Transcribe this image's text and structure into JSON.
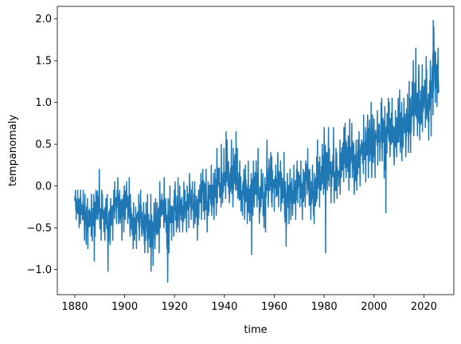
{
  "chart_data": {
    "type": "line",
    "xlabel": "time",
    "ylabel": "tempanomaly",
    "xlim": [
      1873,
      2032
    ],
    "ylim": [
      -1.3,
      2.15
    ],
    "x_ticks": [
      1880,
      1900,
      1920,
      1940,
      1960,
      1980,
      2000,
      2020
    ],
    "x_tick_labels": [
      "1880",
      "1900",
      "1920",
      "1940",
      "1960",
      "1980",
      "2000",
      "2020"
    ],
    "y_ticks": [
      -1.0,
      -0.5,
      0.0,
      0.5,
      1.0,
      1.5,
      2.0
    ],
    "y_tick_labels": [
      "−1.0",
      "−0.5",
      "0.0",
      "0.5",
      "1.0",
      "1.5",
      "2.0"
    ],
    "grid": false,
    "line_color": "#1f77b4",
    "series": [
      {
        "x": [
          1880,
          1881,
          1882,
          1883,
          1884,
          1885,
          1886,
          1887,
          1888,
          1889,
          1890,
          1891,
          1892,
          1893,
          1894,
          1895,
          1896,
          1897,
          1898,
          1899,
          1900,
          1901,
          1902,
          1903,
          1904,
          1905,
          1906,
          1907,
          1908,
          1909,
          1910,
          1911,
          1912,
          1913,
          1914,
          1915,
          1916,
          1917,
          1918,
          1919,
          1920,
          1921,
          1922,
          1923,
          1924,
          1925,
          1926,
          1927,
          1928,
          1929,
          1930,
          1931,
          1932,
          1933,
          1934,
          1935,
          1936,
          1937,
          1938,
          1939,
          1940,
          1941,
          1942,
          1943,
          1944,
          1945,
          1946,
          1947,
          1948,
          1949,
          1950,
          1951,
          1952,
          1953,
          1954,
          1955,
          1956,
          1957,
          1958,
          1959,
          1960,
          1961,
          1962,
          1963,
          1964,
          1965,
          1966,
          1967,
          1968,
          1969,
          1970,
          1971,
          1972,
          1973,
          1974,
          1975,
          1976,
          1977,
          1978,
          1979,
          1980,
          1981,
          1982,
          1983,
          1984,
          1985,
          1986,
          1987,
          1988,
          1989,
          1990,
          1991,
          1992,
          1993,
          1994,
          1995,
          1996,
          1997,
          1998,
          1999,
          2000,
          2001,
          2002,
          2003,
          2004,
          2005,
          2006,
          2007,
          2008,
          2009,
          2010,
          2011,
          2012,
          2013,
          2014,
          2015,
          2016,
          2017,
          2018,
          2019,
          2020,
          2021,
          2022,
          2023,
          2024,
          2025
        ],
        "y_mean": [
          -0.2,
          -0.25,
          -0.22,
          -0.3,
          -0.35,
          -0.4,
          -0.35,
          -0.38,
          -0.3,
          -0.18,
          -0.35,
          -0.3,
          -0.38,
          -0.42,
          -0.4,
          -0.35,
          -0.2,
          -0.18,
          -0.35,
          -0.25,
          -0.15,
          -0.2,
          -0.35,
          -0.45,
          -0.55,
          -0.38,
          -0.35,
          -0.48,
          -0.5,
          -0.52,
          -0.48,
          -0.5,
          -0.42,
          -0.42,
          -0.25,
          -0.2,
          -0.4,
          -0.48,
          -0.35,
          -0.32,
          -0.28,
          -0.22,
          -0.3,
          -0.28,
          -0.3,
          -0.25,
          -0.12,
          -0.22,
          -0.22,
          -0.35,
          -0.15,
          -0.05,
          -0.1,
          -0.25,
          -0.1,
          -0.15,
          -0.1,
          0.02,
          0.0,
          0.02,
          0.1,
          0.12,
          0.05,
          0.08,
          0.2,
          0.1,
          -0.05,
          -0.05,
          -0.1,
          -0.12,
          -0.2,
          -0.05,
          0.02,
          0.1,
          -0.15,
          -0.18,
          -0.25,
          0.05,
          0.08,
          0.02,
          -0.02,
          0.05,
          0.02,
          0.05,
          -0.25,
          -0.15,
          -0.1,
          -0.05,
          -0.08,
          0.05,
          0.02,
          -0.1,
          0.02,
          0.15,
          -0.1,
          -0.05,
          -0.15,
          0.15,
          0.05,
          0.15,
          0.25,
          0.3,
          0.1,
          0.3,
          0.12,
          0.1,
          0.18,
          0.32,
          0.38,
          0.25,
          0.42,
          0.4,
          0.2,
          0.22,
          0.28,
          0.45,
          0.35,
          0.48,
          0.62,
          0.42,
          0.42,
          0.55,
          0.62,
          0.65,
          0.58,
          0.7,
          0.65,
          0.68,
          0.55,
          0.65,
          0.72,
          0.6,
          0.65,
          0.7,
          0.75,
          0.95,
          1.05,
          0.95,
          0.88,
          1.0,
          1.05,
          0.9,
          0.95,
          1.2,
          1.35,
          1.3
        ],
        "y_min": [
          -0.4,
          -0.5,
          -0.45,
          -0.65,
          -0.7,
          -0.75,
          -0.6,
          -0.9,
          -0.6,
          -0.4,
          -0.65,
          -0.55,
          -0.65,
          -1.02,
          -0.7,
          -0.65,
          -0.45,
          -0.45,
          -0.65,
          -0.55,
          -0.4,
          -0.45,
          -0.6,
          -0.75,
          -0.75,
          -0.65,
          -0.6,
          -0.7,
          -0.8,
          -0.8,
          -1.02,
          -0.95,
          -0.75,
          -0.8,
          -0.5,
          -0.5,
          -0.7,
          -1.15,
          -0.65,
          -0.6,
          -0.55,
          -0.5,
          -0.55,
          -0.55,
          -0.55,
          -0.5,
          -0.4,
          -0.5,
          -0.45,
          -0.65,
          -0.4,
          -0.3,
          -0.4,
          -0.55,
          -0.35,
          -0.4,
          -0.35,
          -0.2,
          -0.25,
          -0.2,
          -0.15,
          -0.1,
          -0.2,
          -0.25,
          -0.05,
          -0.15,
          -0.3,
          -0.35,
          -0.4,
          -0.45,
          -0.82,
          -0.35,
          -0.25,
          -0.25,
          -0.45,
          -0.5,
          -0.55,
          -0.25,
          -0.2,
          -0.25,
          -0.3,
          -0.25,
          -0.3,
          -0.2,
          -0.72,
          -0.45,
          -0.4,
          -0.35,
          -0.4,
          -0.2,
          -0.25,
          -0.4,
          -0.25,
          -0.1,
          -0.4,
          -0.35,
          -0.45,
          -0.15,
          -0.25,
          -0.1,
          -0.8,
          -0.05,
          -0.2,
          0.0,
          -0.2,
          -0.15,
          -0.1,
          0.05,
          0.1,
          -0.05,
          0.1,
          0.1,
          -0.1,
          -0.05,
          0.0,
          0.15,
          0.05,
          0.1,
          0.3,
          0.1,
          0.1,
          0.25,
          0.3,
          0.3,
          -0.32,
          0.4,
          0.35,
          0.35,
          0.25,
          0.35,
          0.4,
          0.3,
          0.35,
          0.4,
          0.4,
          0.6,
          0.7,
          0.6,
          0.55,
          0.65,
          0.7,
          0.55,
          0.6,
          0.85,
          1.0,
          0.95
        ],
        "y_max": [
          -0.05,
          -0.05,
          -0.05,
          -0.05,
          -0.1,
          -0.15,
          -0.1,
          -0.1,
          -0.05,
          0.2,
          -0.05,
          -0.1,
          -0.15,
          -0.1,
          -0.15,
          -0.05,
          0.05,
          0.1,
          -0.05,
          0.0,
          0.05,
          0.1,
          -0.1,
          -0.2,
          -0.25,
          -0.1,
          -0.05,
          -0.2,
          -0.2,
          -0.1,
          -0.1,
          -0.2,
          -0.15,
          -0.2,
          0.05,
          0.1,
          -0.15,
          -0.15,
          0.0,
          -0.05,
          0.05,
          0.1,
          0.0,
          0.05,
          -0.05,
          0.0,
          0.15,
          0.05,
          0.05,
          -0.05,
          0.15,
          0.2,
          0.2,
          0.05,
          0.25,
          0.15,
          0.2,
          0.45,
          0.5,
          0.45,
          0.65,
          0.55,
          0.55,
          0.45,
          0.65,
          0.45,
          0.3,
          0.2,
          0.25,
          0.3,
          0.15,
          0.3,
          0.3,
          0.45,
          0.2,
          0.15,
          0.1,
          0.55,
          0.4,
          0.35,
          0.25,
          0.4,
          0.3,
          0.4,
          0.05,
          0.15,
          0.2,
          0.25,
          0.2,
          0.3,
          0.3,
          0.2,
          0.3,
          0.45,
          0.2,
          0.25,
          0.15,
          0.55,
          0.35,
          0.5,
          0.7,
          0.7,
          0.45,
          0.7,
          0.45,
          0.4,
          0.55,
          0.7,
          0.75,
          0.6,
          0.8,
          0.75,
          0.55,
          0.55,
          0.65,
          0.85,
          0.7,
          0.85,
          1.0,
          0.85,
          0.8,
          0.9,
          1.0,
          1.05,
          0.95,
          1.05,
          1.0,
          1.05,
          0.9,
          1.05,
          1.15,
          1.0,
          1.05,
          1.1,
          1.25,
          1.5,
          1.65,
          1.45,
          1.35,
          1.45,
          1.55,
          1.4,
          1.5,
          1.98,
          1.9,
          1.65
        ]
      }
    ]
  }
}
